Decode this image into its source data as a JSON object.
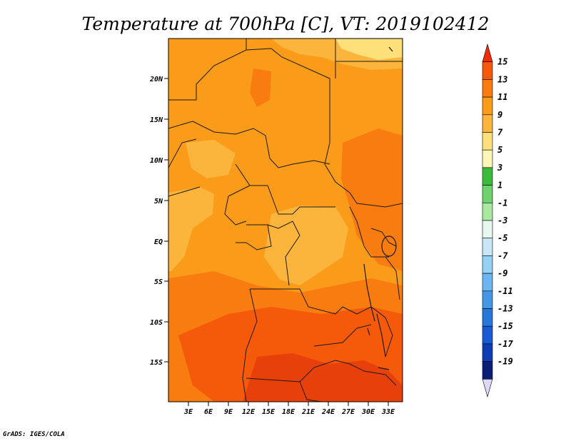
{
  "title": "Temperature at 700hPa [C], VT: 2019102412",
  "credit": "GrADS: IGES/COLA",
  "map": {
    "region": "Central Africa",
    "variable": "Temperature at 700hPa",
    "units": "C",
    "valid_time": "2019102412",
    "lat_ticks": [
      "20N",
      "15N",
      "10N",
      "5N",
      "EQ",
      "5S",
      "10S",
      "15S"
    ],
    "lon_ticks": [
      "3E",
      "6E",
      "9E",
      "12E",
      "15E",
      "18E",
      "21E",
      "24E",
      "27E",
      "30E",
      "33E"
    ]
  },
  "colorbar": {
    "labels": [
      "15",
      "13",
      "11",
      "9",
      "7",
      "5",
      "3",
      "1",
      "-1",
      "-3",
      "-5",
      "-7",
      "-9",
      "-11",
      "-13",
      "-15",
      "-17",
      "-19"
    ],
    "colors": [
      "#f02a0a",
      "#f55a0a",
      "#f87c10",
      "#fb9b1a",
      "#fbb43c",
      "#fde07a",
      "#fef6b8",
      "#3cba3c",
      "#6fd26f",
      "#a8e8a0",
      "#e6f8f0",
      "#c8e6f8",
      "#96d0f5",
      "#6eb4f0",
      "#4696e6",
      "#2878dc",
      "#1a5ad2",
      "#0f3cb4",
      "#0a1e78",
      "#dcd8f8"
    ]
  },
  "colors": {
    "dominant": "#fb9b1a",
    "warm": "#f87c10",
    "hot": "#f55a0a",
    "hottest": "#e8400a",
    "cool": "#fbb43c",
    "coolest": "#fde07a",
    "border": "#1a1a1a"
  }
}
